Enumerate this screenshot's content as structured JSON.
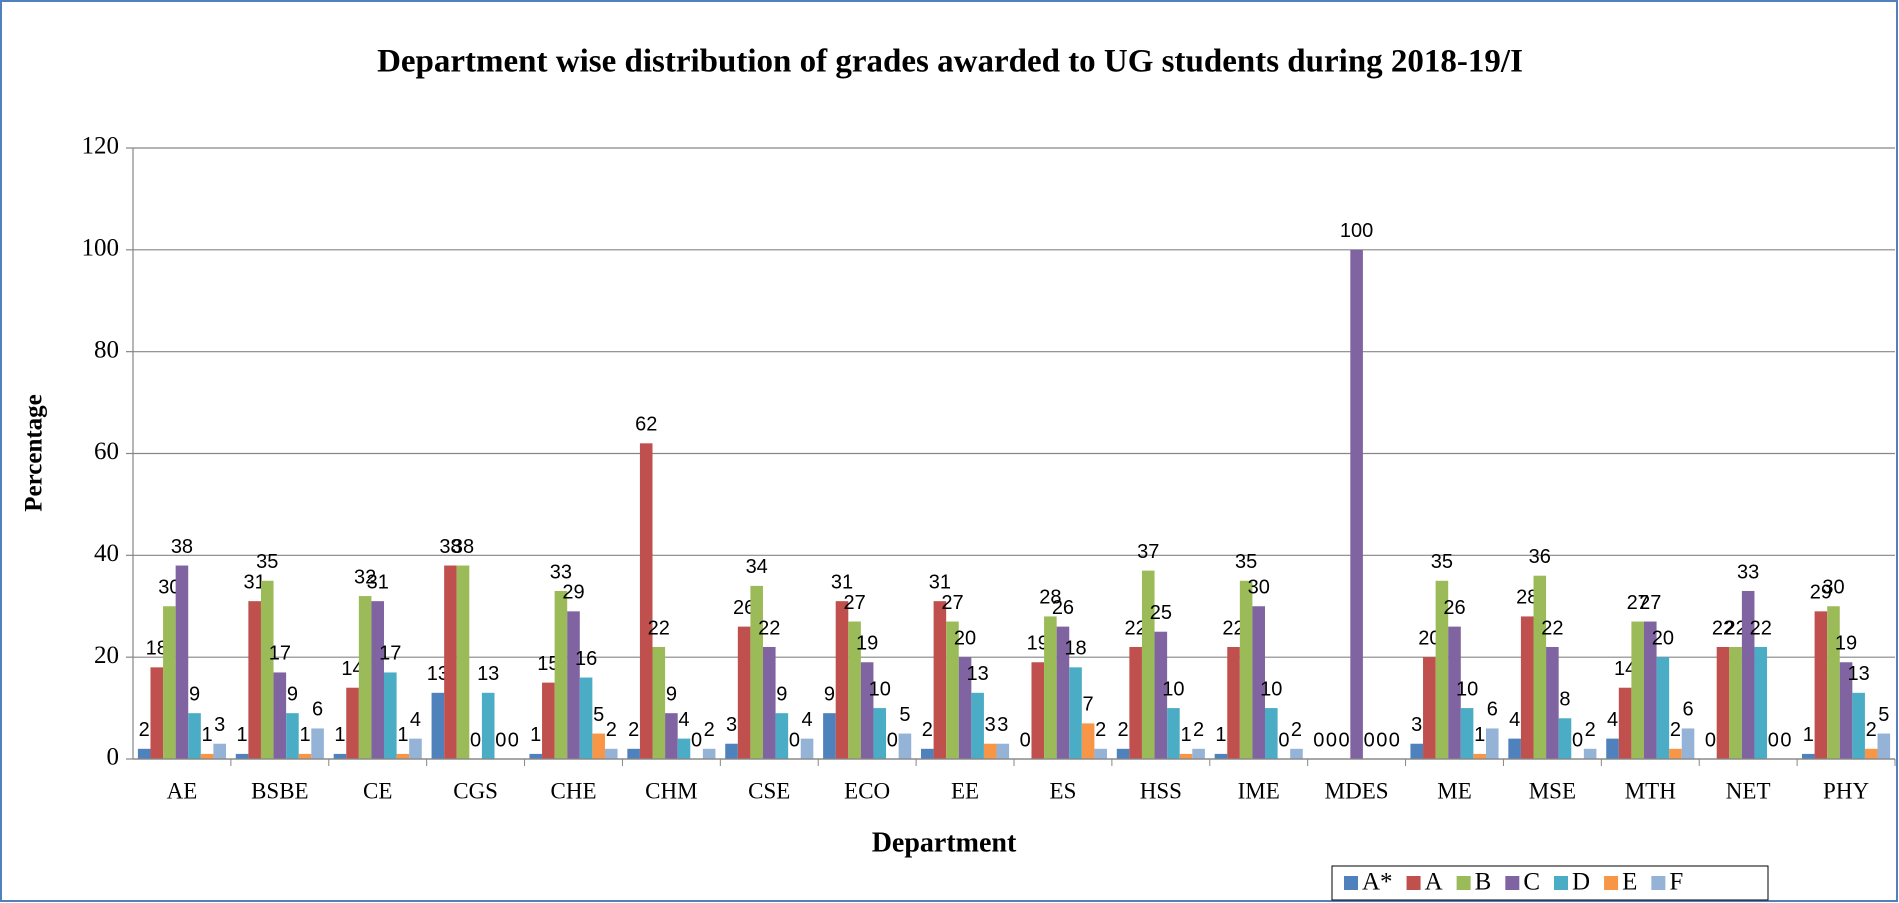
{
  "chart_data": {
    "type": "bar",
    "title": "Department wise distribution of grades awarded to UG students during 2018-19/I",
    "x_label": "Department",
    "y_label": "Percentage",
    "categories": [
      "AE",
      "BSBE",
      "CE",
      "CGS",
      "CHE",
      "CHM",
      "CSE",
      "ECO",
      "EE",
      "ES",
      "HSS",
      "IME",
      "MDES",
      "ME",
      "MSE",
      "MTH",
      "NET",
      "PHY"
    ],
    "series": [
      {
        "name": "A*",
        "color": "#4f81bd",
        "values": [
          2,
          1,
          1,
          13,
          1,
          2,
          3,
          9,
          2,
          0,
          2,
          1,
          0,
          3,
          4,
          4,
          0,
          1
        ]
      },
      {
        "name": "A",
        "color": "#c0504d",
        "values": [
          18,
          31,
          14,
          38,
          15,
          62,
          26,
          31,
          31,
          19,
          22,
          22,
          0,
          20,
          28,
          14,
          22,
          29
        ]
      },
      {
        "name": "B",
        "color": "#9bbb59",
        "values": [
          30,
          35,
          32,
          38,
          33,
          22,
          34,
          27,
          27,
          28,
          37,
          35,
          0,
          35,
          36,
          27,
          22,
          30
        ]
      },
      {
        "name": "C",
        "color": "#8064a2",
        "values": [
          38,
          17,
          31,
          0,
          29,
          9,
          22,
          19,
          20,
          26,
          25,
          30,
          100,
          26,
          22,
          27,
          33,
          19
        ]
      },
      {
        "name": "D",
        "color": "#4bacc6",
        "values": [
          9,
          9,
          17,
          13,
          16,
          4,
          9,
          10,
          13,
          18,
          10,
          10,
          0,
          10,
          8,
          20,
          22,
          13
        ]
      },
      {
        "name": "E",
        "color": "#f79646",
        "values": [
          1,
          1,
          1,
          0,
          5,
          0,
          0,
          0,
          3,
          7,
          1,
          0,
          0,
          1,
          0,
          2,
          0,
          2
        ]
      },
      {
        "name": "F",
        "color": "#95b3d7",
        "values": [
          3,
          6,
          4,
          0,
          2,
          2,
          4,
          5,
          3,
          2,
          2,
          2,
          0,
          6,
          2,
          6,
          0,
          5
        ]
      }
    ],
    "ylim": [
      0,
      120
    ],
    "yticks": [
      0,
      20,
      40,
      60,
      80,
      100,
      120
    ],
    "grid": true,
    "legend": "bottom-right"
  }
}
